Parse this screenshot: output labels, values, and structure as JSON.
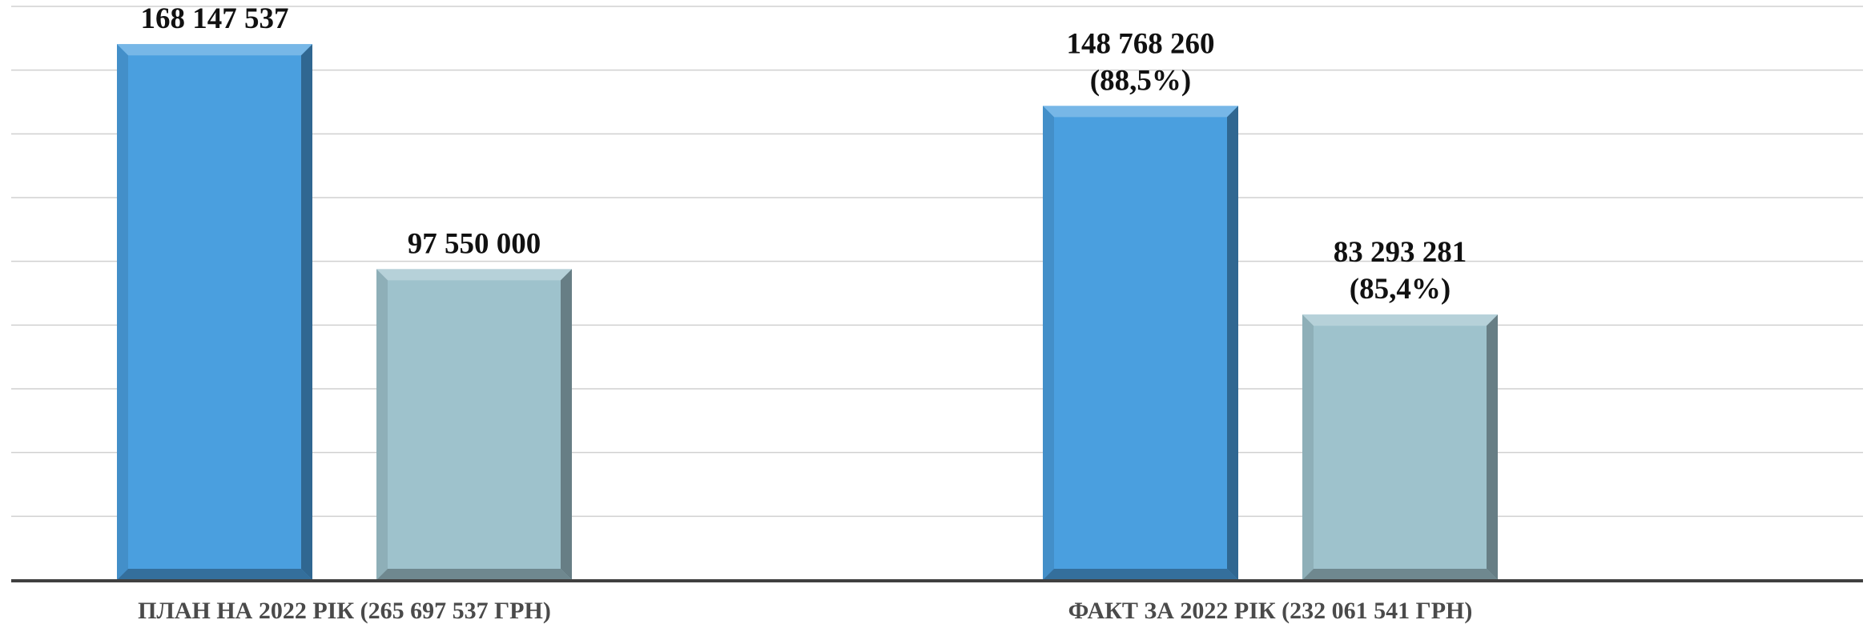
{
  "chart_data": {
    "type": "bar",
    "categories": [
      "ПЛАН НА 2022 РІК (265 697 537 ГРН)",
      "ФАКТ ЗА 2022 РІК (232 061 541 ГРН)"
    ],
    "series": [
      {
        "values": [
          168147537,
          148768260
        ],
        "labels": [
          [
            "168 147 537"
          ],
          [
            "148 768 260",
            "(88,5%)"
          ]
        ],
        "color": "#4a9fdf"
      },
      {
        "values": [
          97550000,
          83293281
        ],
        "labels": [
          [
            "97 550 000"
          ],
          [
            "83 293 281",
            "(85,4%)"
          ]
        ],
        "color": "#9ec2cc"
      }
    ],
    "ylim": [
      0,
      180000000
    ],
    "grid": true,
    "legend": "none",
    "axis_color": "#404040",
    "grid_color": "#d0d0d0"
  }
}
